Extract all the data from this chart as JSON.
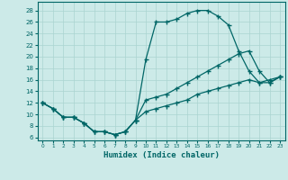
{
  "xlabel": "Humidex (Indice chaleur)",
  "background_color": "#cceae8",
  "grid_color": "#aad4d0",
  "line_color": "#006666",
  "xlim": [
    -0.5,
    23.5
  ],
  "ylim": [
    5.5,
    29.5
  ],
  "xticks": [
    0,
    1,
    2,
    3,
    4,
    5,
    6,
    7,
    8,
    9,
    10,
    11,
    12,
    13,
    14,
    15,
    16,
    17,
    18,
    19,
    20,
    21,
    22,
    23
  ],
  "yticks": [
    6,
    8,
    10,
    12,
    14,
    16,
    18,
    20,
    22,
    24,
    26,
    28
  ],
  "curve1_x": [
    0,
    1,
    2,
    3,
    4,
    5,
    6,
    7,
    8,
    9,
    10,
    11,
    12,
    13,
    14,
    15,
    16,
    17,
    18,
    19,
    20,
    21,
    22,
    23
  ],
  "curve1_y": [
    12,
    11,
    9.5,
    9.5,
    8.5,
    7,
    7,
    6.5,
    7,
    9,
    19.5,
    26,
    26,
    26.5,
    27.5,
    28,
    28,
    27,
    25.5,
    21,
    17.5,
    15.5,
    16,
    16.5
  ],
  "curve2_x": [
    0,
    1,
    2,
    3,
    4,
    5,
    6,
    7,
    8,
    9,
    10,
    11,
    12,
    13,
    14,
    15,
    16,
    17,
    18,
    19,
    20,
    21,
    22,
    23
  ],
  "curve2_y": [
    12,
    11,
    9.5,
    9.5,
    8.5,
    7,
    7,
    6.5,
    7,
    9,
    12.5,
    13,
    13.5,
    14.5,
    15.5,
    16.5,
    17.5,
    18.5,
    19.5,
    20.5,
    21,
    17.5,
    15.5,
    16.5
  ],
  "curve3_x": [
    0,
    1,
    2,
    3,
    4,
    5,
    6,
    7,
    8,
    9,
    10,
    11,
    12,
    13,
    14,
    15,
    16,
    17,
    18,
    19,
    20,
    21,
    22,
    23
  ],
  "curve3_y": [
    12,
    11,
    9.5,
    9.5,
    8.5,
    7,
    7,
    6.5,
    7,
    9,
    10.5,
    11,
    11.5,
    12,
    12.5,
    13.5,
    14,
    14.5,
    15,
    15.5,
    16,
    15.5,
    15.5,
    16.5
  ]
}
